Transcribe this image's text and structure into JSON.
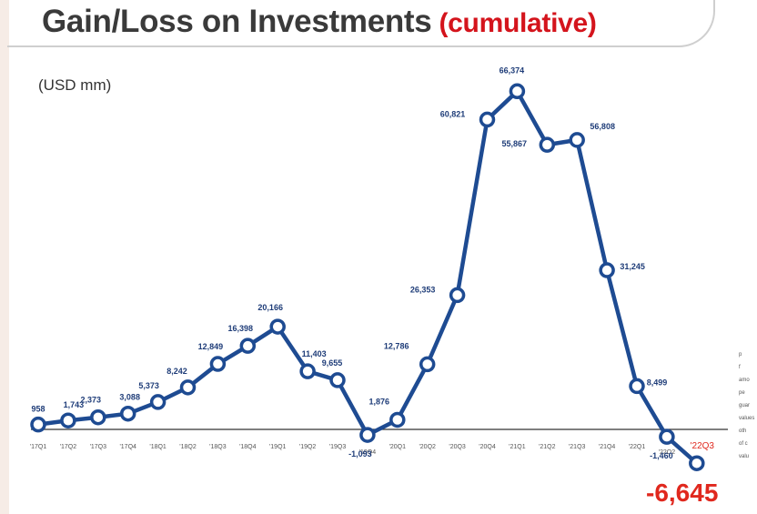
{
  "header": {
    "title": "Gain/Loss on Investments",
    "subtitle": "(cumulative)"
  },
  "unit_label": "(USD mm)",
  "highlight_value": "-6,645",
  "side_notes": [
    "p",
    "f",
    "amo",
    "pe",
    "guar",
    "values",
    "oth",
    "of c",
    "valu"
  ],
  "colors": {
    "line": "#1e4b92",
    "label": "#1e3c78",
    "last_quarter": "#e0281e",
    "axis": "#333333"
  },
  "chart_data": {
    "type": "line",
    "title": "Gain/Loss on Investments (cumulative)",
    "ylabel": "(USD mm)",
    "categories": [
      "'17Q1",
      "'17Q2",
      "'17Q3",
      "'17Q4",
      "'18Q1",
      "'18Q2",
      "'18Q3",
      "'18Q4",
      "'19Q1",
      "'19Q2",
      "'19Q3",
      "'19Q4",
      "'20Q1",
      "'20Q2",
      "'20Q3",
      "'20Q4",
      "'21Q1",
      "'21Q2",
      "'21Q3",
      "'21Q4",
      "'22Q1",
      "'22Q2",
      "'22Q3"
    ],
    "values": [
      958,
      1743,
      2373,
      3088,
      5373,
      8242,
      12849,
      16398,
      20166,
      11403,
      9655,
      -1093,
      1876,
      12786,
      26353,
      60821,
      66374,
      55867,
      56808,
      31245,
      8499,
      -1460,
      -6645
    ],
    "data_labels": [
      "958",
      "1,743",
      "2,373",
      "3,088",
      "5,373",
      "8,242",
      "12,849",
      "16,398",
      "20,166",
      "11,403",
      "9,655",
      "-1,093",
      "1,876",
      "12,786",
      "26,353",
      "60,821",
      "66,374",
      "55,867",
      "56,808",
      "31,245",
      "8,499",
      "-1,460",
      ""
    ],
    "ylim": [
      -7000,
      70000
    ],
    "grid": false,
    "legend": "none"
  }
}
